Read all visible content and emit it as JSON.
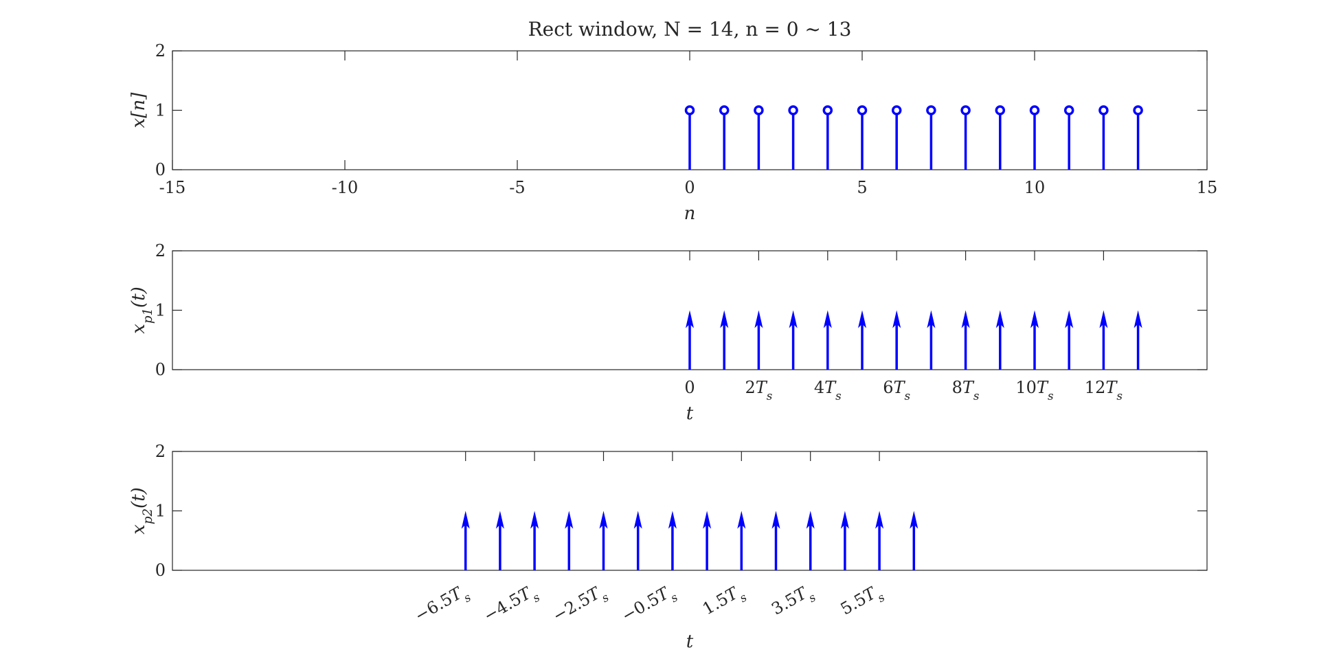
{
  "chart_data": [
    {
      "type": "stem",
      "title": "Rect window, N = 14, n = 0 ~ 13",
      "xlabel": "n",
      "ylabel": "x[n]",
      "xlim": [
        -15,
        15
      ],
      "ylim": [
        0,
        2
      ],
      "xticks": [
        -15,
        -10,
        -5,
        0,
        5,
        10,
        15
      ],
      "xtick_labels": [
        "-15",
        "-10",
        "-5",
        "0",
        "5",
        "10",
        "15"
      ],
      "yticks": [
        0,
        1,
        2
      ],
      "ytick_labels": [
        "0",
        "1",
        "2"
      ],
      "x": [
        0,
        1,
        2,
        3,
        4,
        5,
        6,
        7,
        8,
        9,
        10,
        11,
        12,
        13
      ],
      "values": [
        1,
        1,
        1,
        1,
        1,
        1,
        1,
        1,
        1,
        1,
        1,
        1,
        1,
        1
      ],
      "color": "#0000ff",
      "marker": "circle"
    },
    {
      "type": "impulse",
      "title": "",
      "xlabel": "t",
      "ylabel": "x_p1(t)",
      "xlim": [
        -15,
        15
      ],
      "ylim": [
        0,
        2
      ],
      "xticks": [
        0,
        2,
        4,
        6,
        8,
        10,
        12
      ],
      "xtick_labels": [
        "0",
        "2T_s",
        "4T_s",
        "6T_s",
        "8T_s",
        "10T_s",
        "12T_s"
      ],
      "yticks": [
        0,
        1,
        2
      ],
      "ytick_labels": [
        "0",
        "1",
        "2"
      ],
      "x": [
        0,
        1,
        2,
        3,
        4,
        5,
        6,
        7,
        8,
        9,
        10,
        11,
        12,
        13
      ],
      "values": [
        1,
        1,
        1,
        1,
        1,
        1,
        1,
        1,
        1,
        1,
        1,
        1,
        1,
        1
      ],
      "color": "#0000ff",
      "marker": "arrow"
    },
    {
      "type": "impulse",
      "title": "",
      "xlabel": "t",
      "ylabel": "x_p2(t)",
      "xlim": [
        -15,
        15
      ],
      "ylim": [
        0,
        2
      ],
      "xticks": [
        -6.5,
        -4.5,
        -2.5,
        -0.5,
        1.5,
        3.5,
        5.5
      ],
      "xtick_labels": [
        "−6.5T_s",
        "−4.5T_s",
        "−2.5T_s",
        "−0.5T_s",
        "1.5T_s",
        "3.5T_s",
        "5.5T_s"
      ],
      "xtick_rotation": -30,
      "yticks": [
        0,
        1,
        2
      ],
      "ytick_labels": [
        "0",
        "1",
        "2"
      ],
      "x": [
        -6.5,
        -5.5,
        -4.5,
        -3.5,
        -2.5,
        -1.5,
        -0.5,
        0.5,
        1.5,
        2.5,
        3.5,
        4.5,
        5.5,
        6.5
      ],
      "values": [
        1,
        1,
        1,
        1,
        1,
        1,
        1,
        1,
        1,
        1,
        1,
        1,
        1,
        1
      ],
      "color": "#0000ff",
      "marker": "arrow"
    }
  ]
}
